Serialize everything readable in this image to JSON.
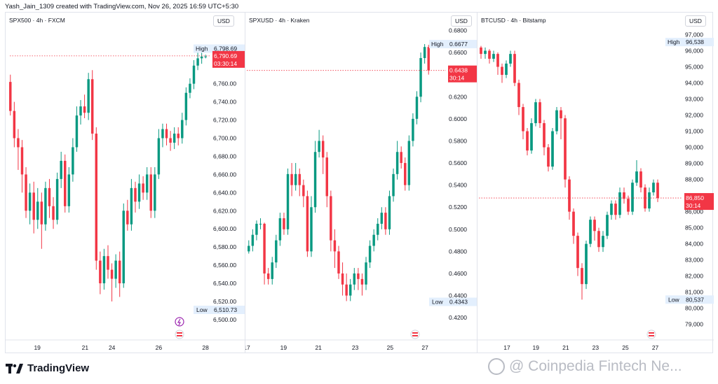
{
  "header": {
    "credit": "Yash_Jain_1309 created with TradingView.com, Nov 26, 2025 16:59 UTC+5:30"
  },
  "footer": {
    "brand": "TradingView",
    "watermark": "@ Coinpedia Fintech Ne..."
  },
  "colors": {
    "up": "#089981",
    "down": "#f23645",
    "badge": "#f23645",
    "tag_bg": "#e3effd"
  },
  "chart_data": [
    {
      "type": "candlestick",
      "title": "SPX500 · 4h · FXCM",
      "currency": "USD",
      "ylim": [
        6493.0,
        6823.0
      ],
      "yticks": [
        6500,
        6520,
        6540,
        6560,
        6580,
        6600,
        6620,
        6640,
        6660,
        6680,
        6700,
        6720,
        6740,
        6760
      ],
      "ytick_labels": [
        "6,500.00",
        "6,520.00",
        "6,540.00",
        "6,560.00",
        "6,580.00",
        "6,600.00",
        "6,620.00",
        "6,640.00",
        "6,660.00",
        "6,680.00",
        "6,700.00",
        "6,720.00",
        "6,740.00",
        "6,760.00"
      ],
      "xticks": [
        {
          "label": "19",
          "at": 0.145
        },
        {
          "label": "21",
          "at": 0.385
        },
        {
          "label": "24",
          "at": 0.52
        },
        {
          "label": "26",
          "at": 0.755
        },
        {
          "label": "28",
          "at": 0.99
        }
      ],
      "high": {
        "label": "High",
        "value": 6798.69,
        "text": "6,798.69"
      },
      "low": {
        "label": "Low",
        "value": 6510.73,
        "text": "6,510.73"
      },
      "last": {
        "value": 6790.69,
        "text": "6,790.69",
        "countdown": "03:30:14"
      },
      "candles": [
        [
          6762,
          6730,
          6770,
          6725
        ],
        [
          6730,
          6700,
          6740,
          6690
        ],
        [
          6700,
          6690,
          6710,
          6665
        ],
        [
          6690,
          6660,
          6698,
          6640
        ],
        [
          6660,
          6620,
          6668,
          6612
        ],
        [
          6620,
          6640,
          6650,
          6605
        ],
        [
          6640,
          6610,
          6652,
          6595
        ],
        [
          6610,
          6630,
          6645,
          6600
        ],
        [
          6630,
          6605,
          6640,
          6578
        ],
        [
          6605,
          6645,
          6652,
          6598
        ],
        [
          6645,
          6625,
          6655,
          6612
        ],
        [
          6625,
          6610,
          6635,
          6600
        ],
        [
          6610,
          6655,
          6662,
          6605
        ],
        [
          6655,
          6675,
          6685,
          6645
        ],
        [
          6675,
          6625,
          6682,
          6618
        ],
        [
          6625,
          6660,
          6668,
          6618
        ],
        [
          6660,
          6690,
          6700,
          6652
        ],
        [
          6690,
          6725,
          6735,
          6685
        ],
        [
          6725,
          6735,
          6742,
          6715
        ],
        [
          6735,
          6728,
          6748,
          6722
        ],
        [
          6728,
          6765,
          6772,
          6720
        ],
        [
          6765,
          6705,
          6775,
          6698
        ],
        [
          6705,
          6565,
          6712,
          6555
        ],
        [
          6565,
          6540,
          6575,
          6528
        ],
        [
          6540,
          6570,
          6578,
          6533
        ],
        [
          6570,
          6555,
          6582,
          6545
        ],
        [
          6555,
          6545,
          6562,
          6520
        ],
        [
          6545,
          6565,
          6572,
          6535
        ],
        [
          6565,
          6540,
          6575,
          6525
        ],
        [
          6540,
          6620,
          6628,
          6535
        ],
        [
          6620,
          6605,
          6632,
          6598
        ],
        [
          6605,
          6645,
          6655,
          6598
        ],
        [
          6645,
          6630,
          6652,
          6618
        ],
        [
          6630,
          6650,
          6660,
          6622
        ],
        [
          6650,
          6640,
          6658,
          6632
        ],
        [
          6640,
          6660,
          6668,
          6632
        ],
        [
          6660,
          6620,
          6668,
          6612
        ],
        [
          6620,
          6660,
          6668,
          6612
        ],
        [
          6660,
          6700,
          6710,
          6655
        ],
        [
          6700,
          6710,
          6716,
          6690
        ],
        [
          6710,
          6700,
          6716,
          6692
        ],
        [
          6700,
          6695,
          6708,
          6686
        ],
        [
          6695,
          6705,
          6712,
          6688
        ],
        [
          6705,
          6700,
          6712,
          6692
        ],
        [
          6700,
          6720,
          6728,
          6694
        ],
        [
          6720,
          6750,
          6756,
          6714
        ],
        [
          6750,
          6760,
          6766,
          6744
        ],
        [
          6760,
          6780,
          6786,
          6754
        ],
        [
          6780,
          6788,
          6795,
          6775
        ],
        [
          6788,
          6790,
          6798,
          6782
        ],
        [
          6790,
          6790,
          6792,
          6788
        ]
      ]
    },
    {
      "type": "candlestick",
      "title": "SPXUSD · 4h · Kraken",
      "currency": "USD",
      "ylim": [
        0.4125,
        0.6835
      ],
      "yticks": [
        0.42,
        0.44,
        0.46,
        0.48,
        0.5,
        0.52,
        0.54,
        0.56,
        0.58,
        0.6,
        0.62,
        0.64,
        0.66,
        0.68
      ],
      "ytick_labels": [
        "0.4200",
        "0.4400",
        "0.4600",
        "0.4800",
        "0.5000",
        "0.5200",
        "0.5400",
        "0.5600",
        "0.5800",
        "0.6000",
        "0.6200",
        "0.6400",
        "0.6600",
        "0.6800"
      ],
      "xticks": [
        {
          "label": "17",
          "at": 0.0
        },
        {
          "label": "19",
          "at": 0.2
        },
        {
          "label": "21",
          "at": 0.39
        },
        {
          "label": "23",
          "at": 0.59
        },
        {
          "label": "25",
          "at": 0.78
        },
        {
          "label": "27",
          "at": 0.97
        }
      ],
      "high": {
        "label": "High",
        "value": 0.6677,
        "text": "0.6677"
      },
      "low": {
        "label": "Low",
        "value": 0.4343,
        "text": "0.4343"
      },
      "last": {
        "value": 0.6438,
        "text": "0.6438",
        "countdown": "30:14"
      },
      "candles": [
        [
          0.48,
          0.485,
          0.49,
          0.478
        ],
        [
          0.485,
          0.495,
          0.5,
          0.48
        ],
        [
          0.495,
          0.505,
          0.508,
          0.49
        ],
        [
          0.505,
          0.505,
          0.51,
          0.5
        ],
        [
          0.505,
          0.46,
          0.506,
          0.45
        ],
        [
          0.46,
          0.455,
          0.465,
          0.45
        ],
        [
          0.455,
          0.47,
          0.475,
          0.45
        ],
        [
          0.47,
          0.49,
          0.495,
          0.465
        ],
        [
          0.49,
          0.51,
          0.515,
          0.485
        ],
        [
          0.51,
          0.5,
          0.515,
          0.495
        ],
        [
          0.5,
          0.55,
          0.555,
          0.495
        ],
        [
          0.55,
          0.54,
          0.56,
          0.53
        ],
        [
          0.54,
          0.55,
          0.56,
          0.535
        ],
        [
          0.55,
          0.54,
          0.555,
          0.53
        ],
        [
          0.54,
          0.53,
          0.545,
          0.52
        ],
        [
          0.53,
          0.48,
          0.535,
          0.475
        ],
        [
          0.48,
          0.52,
          0.53,
          0.475
        ],
        [
          0.52,
          0.57,
          0.58,
          0.515
        ],
        [
          0.57,
          0.58,
          0.59,
          0.565
        ],
        [
          0.58,
          0.565,
          0.585,
          0.55
        ],
        [
          0.565,
          0.53,
          0.57,
          0.52
        ],
        [
          0.53,
          0.49,
          0.535,
          0.48
        ],
        [
          0.49,
          0.48,
          0.5,
          0.465
        ],
        [
          0.48,
          0.46,
          0.485,
          0.455
        ],
        [
          0.46,
          0.45,
          0.47,
          0.44
        ],
        [
          0.45,
          0.44,
          0.46,
          0.435
        ],
        [
          0.44,
          0.45,
          0.455,
          0.435
        ],
        [
          0.45,
          0.46,
          0.465,
          0.445
        ],
        [
          0.46,
          0.455,
          0.465,
          0.445
        ],
        [
          0.455,
          0.45,
          0.46,
          0.44
        ],
        [
          0.45,
          0.47,
          0.475,
          0.445
        ],
        [
          0.47,
          0.485,
          0.49,
          0.465
        ],
        [
          0.485,
          0.495,
          0.5,
          0.48
        ],
        [
          0.495,
          0.505,
          0.51,
          0.49
        ],
        [
          0.505,
          0.515,
          0.52,
          0.5
        ],
        [
          0.515,
          0.5,
          0.52,
          0.495
        ],
        [
          0.5,
          0.53,
          0.535,
          0.495
        ],
        [
          0.53,
          0.55,
          0.555,
          0.525
        ],
        [
          0.55,
          0.57,
          0.58,
          0.545
        ],
        [
          0.57,
          0.56,
          0.575,
          0.555
        ],
        [
          0.56,
          0.54,
          0.565,
          0.535
        ],
        [
          0.54,
          0.58,
          0.585,
          0.535
        ],
        [
          0.58,
          0.6,
          0.605,
          0.575
        ],
        [
          0.6,
          0.62,
          0.625,
          0.595
        ],
        [
          0.62,
          0.655,
          0.66,
          0.615
        ],
        [
          0.655,
          0.665,
          0.6677,
          0.65
        ],
        [
          0.665,
          0.6438,
          0.667,
          0.64
        ]
      ]
    },
    {
      "type": "candlestick",
      "title": "BTCUSD · 4h · Bitstamp",
      "currency": "USD",
      "ylim": [
        78900,
        97500
      ],
      "yticks": [
        79000,
        80000,
        81000,
        82000,
        83000,
        84000,
        85000,
        86000,
        87000,
        88000,
        89000,
        90000,
        91000,
        92000,
        93000,
        94000,
        95000,
        96000,
        97000
      ],
      "ytick_labels": [
        "79,000",
        "80,000",
        "81,000",
        "82,000",
        "83,000",
        "84,000",
        "85,000",
        "86,000",
        "87,000",
        "88,000",
        "89,000",
        "90,000",
        "91,000",
        "92,000",
        "93,000",
        "94,000",
        "95,000",
        "96,000",
        "97,000"
      ],
      "xticks": [
        {
          "label": "17",
          "at": 0.155
        },
        {
          "label": "19",
          "at": 0.315
        },
        {
          "label": "21",
          "at": 0.48
        },
        {
          "label": "23",
          "at": 0.645
        },
        {
          "label": "25",
          "at": 0.81
        },
        {
          "label": "27",
          "at": 0.975
        }
      ],
      "high": {
        "label": "High",
        "value": 96538,
        "text": "96,538"
      },
      "low": {
        "label": "Low",
        "value": 80537,
        "text": "80,537"
      },
      "last": {
        "value": 86850,
        "text": "86,850",
        "countdown": "30:14"
      },
      "candles": [
        [
          96200,
          95800,
          96300,
          95500
        ],
        [
          95800,
          96000,
          96200,
          95500
        ],
        [
          96000,
          95500,
          96100,
          95200
        ],
        [
          95500,
          95800,
          96000,
          95300
        ],
        [
          95800,
          95000,
          95900,
          94500
        ],
        [
          95000,
          94500,
          95200,
          94000
        ],
        [
          94500,
          95200,
          95400,
          94300
        ],
        [
          95200,
          95800,
          96000,
          95000
        ],
        [
          95800,
          94000,
          96000,
          93800
        ],
        [
          94000,
          92500,
          94200,
          92000
        ],
        [
          92500,
          91000,
          92700,
          90500
        ],
        [
          91000,
          89800,
          91200,
          89500
        ],
        [
          89800,
          91500,
          91800,
          89600
        ],
        [
          91500,
          92800,
          93000,
          91300
        ],
        [
          92800,
          91500,
          93000,
          91200
        ],
        [
          91500,
          90000,
          91700,
          89500
        ],
        [
          90000,
          88800,
          90200,
          88500
        ],
        [
          88800,
          91000,
          91200,
          88600
        ],
        [
          91000,
          92300,
          92500,
          90800
        ],
        [
          92300,
          91800,
          92500,
          90500
        ],
        [
          91800,
          88000,
          92000,
          87500
        ],
        [
          88000,
          86000,
          88200,
          85500
        ],
        [
          86000,
          84500,
          86200,
          84000
        ],
        [
          84500,
          82500,
          84700,
          82000
        ],
        [
          82500,
          81500,
          82800,
          80537
        ],
        [
          81500,
          84000,
          84200,
          81200
        ],
        [
          84000,
          85500,
          85700,
          83800
        ],
        [
          85500,
          84800,
          85700,
          84200
        ],
        [
          84800,
          83800,
          85000,
          83500
        ],
        [
          83800,
          84500,
          84800,
          83500
        ],
        [
          84500,
          85800,
          86000,
          84300
        ],
        [
          85800,
          86500,
          86700,
          85500
        ],
        [
          86500,
          85800,
          86700,
          85500
        ],
        [
          85800,
          87200,
          87500,
          85600
        ],
        [
          87200,
          86800,
          87500,
          86500
        ],
        [
          86800,
          86000,
          87000,
          85800
        ],
        [
          86000,
          87800,
          88000,
          85800
        ],
        [
          87800,
          88500,
          89200,
          87600
        ],
        [
          88500,
          87500,
          88700,
          87200
        ],
        [
          87500,
          86200,
          87700,
          86000
        ],
        [
          86200,
          87200,
          87500,
          86000
        ],
        [
          87200,
          87800,
          88000,
          87000
        ],
        [
          87800,
          86850,
          88000,
          86600
        ]
      ]
    }
  ]
}
